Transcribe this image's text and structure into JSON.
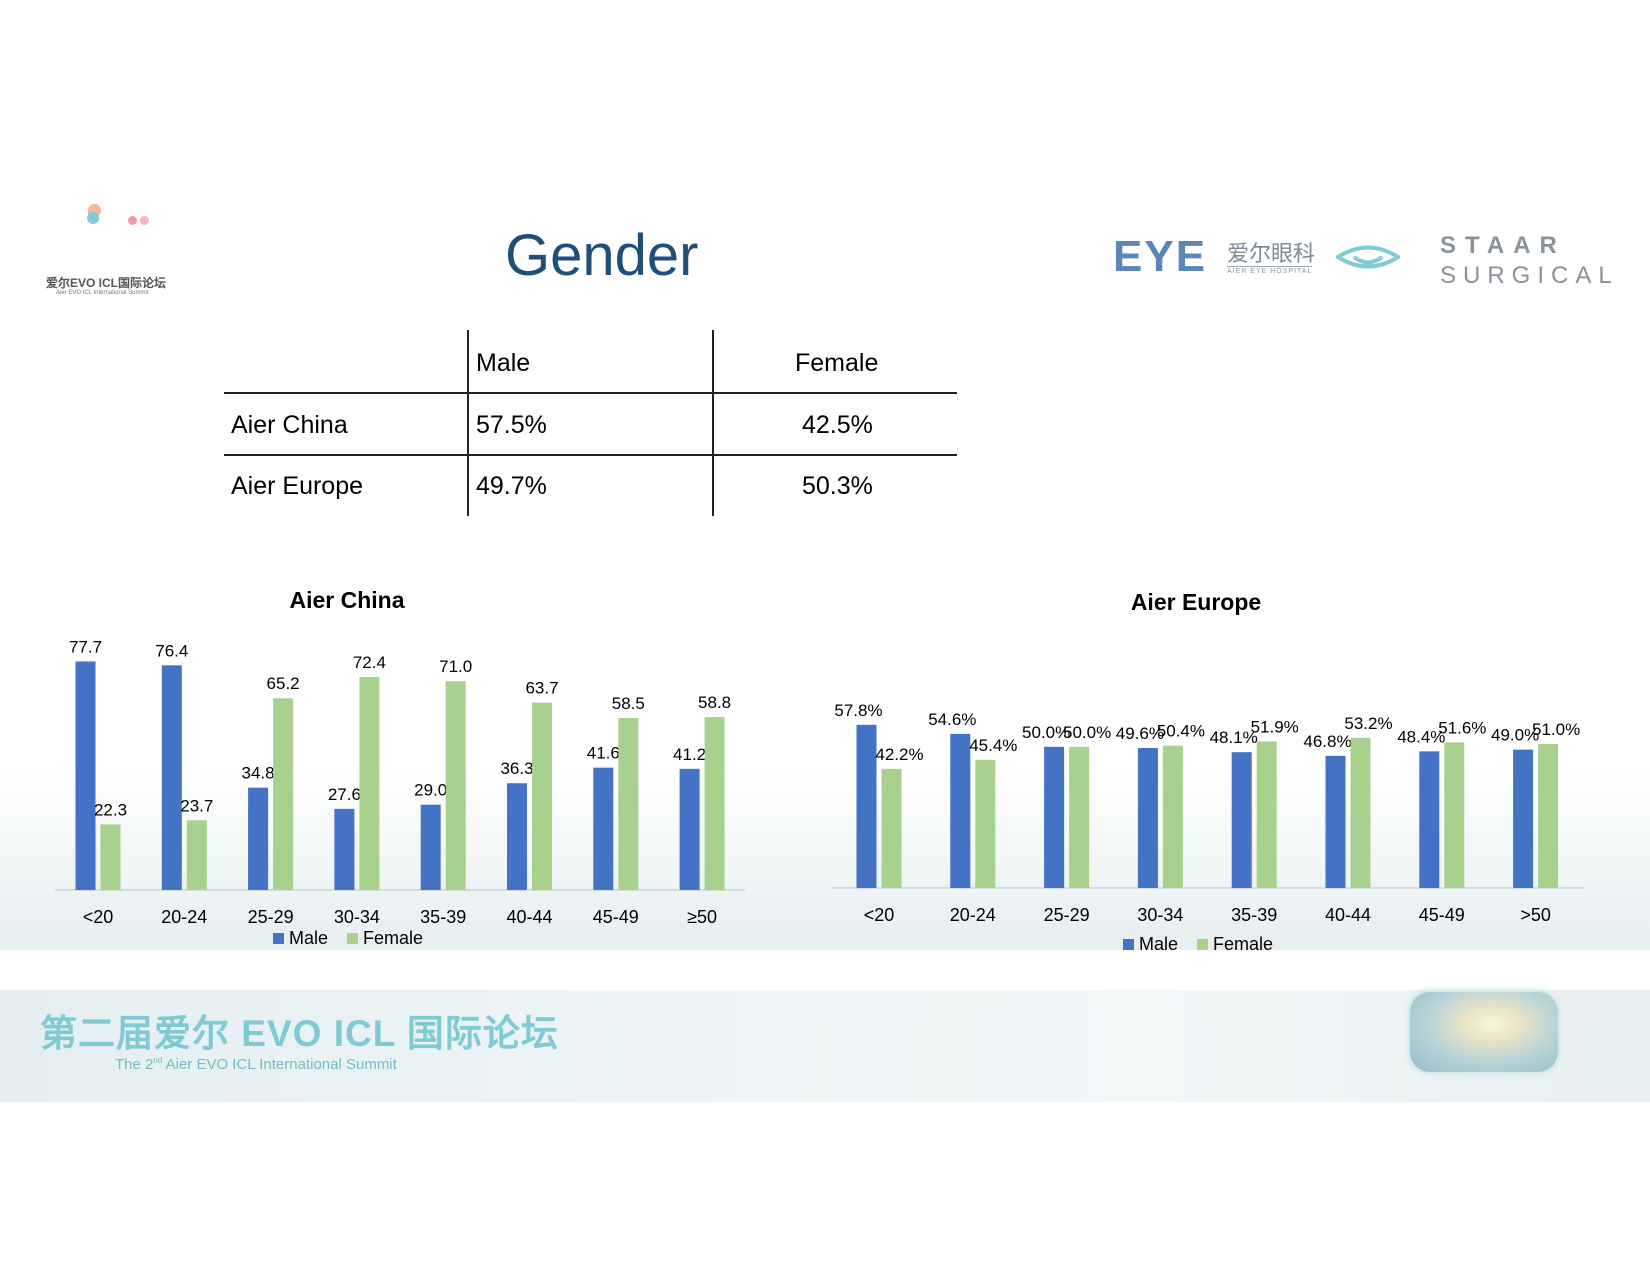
{
  "colors": {
    "male": "#4472c4",
    "female": "#a9d18e",
    "title": "#1f4e79",
    "footer": "#7fcad3"
  },
  "header": {
    "title": "Gender",
    "summit_logo": {
      "zh": "爱尔EVO ICL国际论坛",
      "en": "Aier EVO ICL International Summit"
    },
    "eye_logo": {
      "mark": "EYE",
      "zh": "爱尔眼科",
      "en": "AIER EYE HOSPITAL"
    },
    "staar_logo": {
      "line1": "STAAR",
      "line2": "SURGICAL"
    }
  },
  "table": {
    "headers": [
      "",
      "Male",
      "Female"
    ],
    "rows": [
      {
        "label": "Aier China",
        "male": "57.5%",
        "female": "42.5%"
      },
      {
        "label": "Aier Europe",
        "male": "49.7%",
        "female": "50.3%"
      }
    ]
  },
  "chart_data": [
    {
      "type": "bar",
      "title": "Aier China",
      "categories": [
        "<20",
        "20-24",
        "25-29",
        "30-34",
        "35-39",
        "40-44",
        "45-49",
        "≥50"
      ],
      "series": [
        {
          "name": "Male",
          "values": [
            77.7,
            76.4,
            34.8,
            27.6,
            29.0,
            36.3,
            41.6,
            41.2
          ],
          "labels": [
            "77.7",
            "76.4",
            "34.8",
            "27.6",
            "29.0",
            "36.3",
            "41.6",
            "41.2"
          ]
        },
        {
          "name": "Female",
          "values": [
            22.3,
            23.7,
            65.2,
            72.4,
            71.0,
            63.7,
            58.5,
            58.8
          ],
          "labels": [
            "22.3",
            "23.7",
            "65.2",
            "72.4",
            "71.0",
            "63.7",
            "58.5",
            "58.8"
          ]
        }
      ],
      "legend": [
        "Male",
        "Female"
      ],
      "legend_position": "bottom",
      "ylim": [
        0,
        85
      ],
      "grid": false
    },
    {
      "type": "bar",
      "title": "Aier Europe",
      "categories": [
        "<20",
        "20-24",
        "25-29",
        "30-34",
        "35-39",
        "40-44",
        "45-49",
        ">50"
      ],
      "series": [
        {
          "name": "Male",
          "values": [
            57.8,
            54.6,
            50.0,
            49.6,
            48.1,
            46.8,
            48.4,
            49.0
          ],
          "labels": [
            "57.8%",
            "54.6%",
            "50.0%",
            "49.6%",
            "48.1%",
            "46.8%",
            "48.4%",
            "49.0%"
          ]
        },
        {
          "name": "Female",
          "values": [
            42.2,
            45.4,
            50.0,
            50.4,
            51.9,
            53.2,
            51.6,
            51.0
          ],
          "labels": [
            "42.2%",
            "45.4%",
            "50.0%",
            "50.4%",
            "51.9%",
            "53.2%",
            "51.6%",
            "51.0%"
          ]
        }
      ],
      "legend": [
        "Male",
        "Female"
      ],
      "legend_position": "bottom",
      "ylim": [
        0,
        85
      ],
      "grid": false
    }
  ],
  "footer": {
    "zh": "第二届爱尔 EVO ICL 国际论坛",
    "en_pre": "The 2",
    "en_sup": "nd",
    "en_post": " Aier EVO ICL International Summit"
  }
}
